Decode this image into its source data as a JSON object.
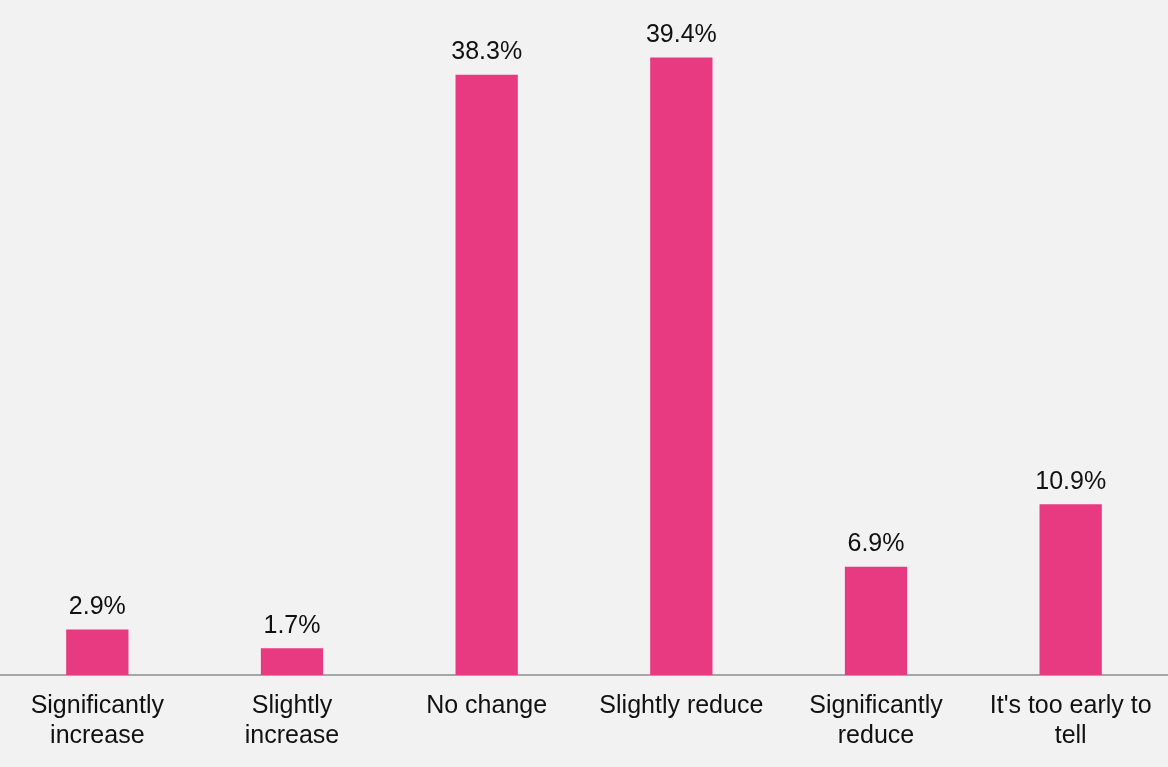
{
  "chart_data": {
    "type": "bar",
    "categories": [
      "Significantly increase",
      "Slightly increase",
      "No change",
      "Slightly reduce",
      "Significantly reduce",
      "It's too early to tell"
    ],
    "values": [
      2.9,
      1.7,
      38.3,
      39.4,
      6.9,
      10.9
    ],
    "value_labels": [
      "2.9%",
      "1.7%",
      "38.3%",
      "39.4%",
      "6.9%",
      "10.9%"
    ],
    "color": "#e83a80",
    "grid": false,
    "legend": false
  }
}
